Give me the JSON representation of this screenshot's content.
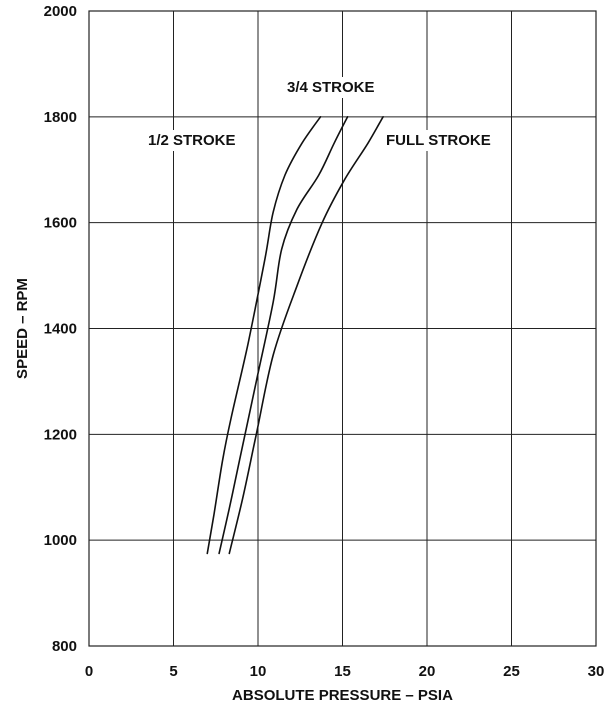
{
  "chart_data": {
    "type": "line",
    "title": "",
    "xlabel": "ABSOLUTE PRESSURE – PSIA",
    "ylabel": "SPEED – RPM",
    "xlim": [
      0,
      30
    ],
    "ylim": [
      800,
      2000
    ],
    "xticks": [
      "0",
      "5",
      "10",
      "15",
      "20",
      "25",
      "30"
    ],
    "yticks": [
      "800",
      "1000",
      "1200",
      "1400",
      "1600",
      "1800",
      "2000"
    ],
    "grid": true,
    "series": [
      {
        "name": "1/2 STROKE",
        "points": [
          [
            7.0,
            975
          ],
          [
            7.4,
            1050
          ],
          [
            7.9,
            1150
          ],
          [
            8.4,
            1230
          ],
          [
            9.4,
            1370
          ],
          [
            10.4,
            1530
          ],
          [
            10.9,
            1620
          ],
          [
            11.6,
            1690
          ],
          [
            12.6,
            1750
          ],
          [
            13.7,
            1800
          ]
        ]
      },
      {
        "name": "3/4 STROKE",
        "points": [
          [
            7.7,
            975
          ],
          [
            8.3,
            1060
          ],
          [
            8.9,
            1150
          ],
          [
            9.9,
            1300
          ],
          [
            10.9,
            1450
          ],
          [
            11.4,
            1550
          ],
          [
            12.3,
            1625
          ],
          [
            13.6,
            1690
          ],
          [
            14.5,
            1750
          ],
          [
            15.3,
            1800
          ]
        ]
      },
      {
        "name": "FULL STROKE",
        "points": [
          [
            8.3,
            975
          ],
          [
            9.1,
            1080
          ],
          [
            9.9,
            1200
          ],
          [
            10.9,
            1350
          ],
          [
            12.3,
            1480
          ],
          [
            13.8,
            1600
          ],
          [
            15.1,
            1680
          ],
          [
            16.5,
            1750
          ],
          [
            17.4,
            1800
          ]
        ]
      }
    ]
  }
}
